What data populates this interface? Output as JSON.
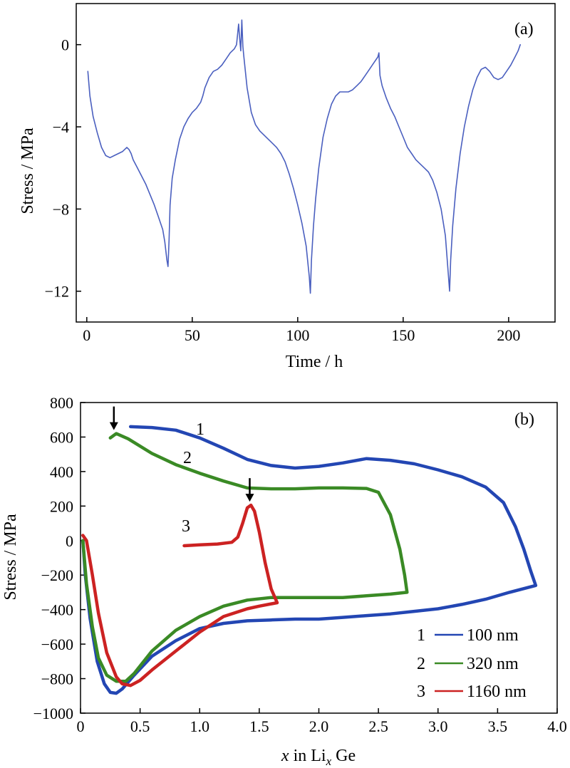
{
  "chart_data": [
    {
      "type": "line",
      "panel_label": "(a)",
      "xlabel": "Time / h",
      "ylabel": "Stress / MPa",
      "xlim": [
        -5,
        222
      ],
      "ylim": [
        -13.5,
        2
      ],
      "xticks": [
        0,
        50,
        100,
        150,
        200
      ],
      "xtick_labels": [
        "0",
        "50",
        "100",
        "150",
        "200"
      ],
      "yticks": [
        0,
        -4,
        -8,
        -12
      ],
      "ytick_labels": [
        "0",
        "−4",
        "−8",
        "−12"
      ],
      "grid": false,
      "series": [
        {
          "color": "#4a5fbf",
          "points": [
            [
              0.5,
              -1.3
            ],
            [
              1.5,
              -2.5
            ],
            [
              3,
              -3.5
            ],
            [
              5,
              -4.3
            ],
            [
              7,
              -5.0
            ],
            [
              9,
              -5.4
            ],
            [
              11,
              -5.5
            ],
            [
              13,
              -5.4
            ],
            [
              15,
              -5.3
            ],
            [
              17,
              -5.2
            ],
            [
              19,
              -5.0
            ],
            [
              20,
              -5.1
            ],
            [
              21,
              -5.3
            ],
            [
              22,
              -5.6
            ],
            [
              24,
              -6.0
            ],
            [
              26,
              -6.4
            ],
            [
              28,
              -6.8
            ],
            [
              30,
              -7.3
            ],
            [
              32,
              -7.8
            ],
            [
              34,
              -8.4
            ],
            [
              36,
              -9.0
            ],
            [
              37,
              -9.6
            ],
            [
              38,
              -10.5
            ],
            [
              38.5,
              -10.8
            ],
            [
              39,
              -9.5
            ],
            [
              39.5,
              -7.8
            ],
            [
              40.5,
              -6.5
            ],
            [
              42,
              -5.6
            ],
            [
              44,
              -4.6
            ],
            [
              46,
              -4.0
            ],
            [
              48,
              -3.6
            ],
            [
              50,
              -3.3
            ],
            [
              52,
              -3.1
            ],
            [
              54,
              -2.8
            ],
            [
              55,
              -2.5
            ],
            [
              56,
              -2.1
            ],
            [
              58,
              -1.6
            ],
            [
              60,
              -1.3
            ],
            [
              62,
              -1.2
            ],
            [
              64,
              -1.0
            ],
            [
              66,
              -0.7
            ],
            [
              68,
              -0.4
            ],
            [
              70,
              -0.2
            ],
            [
              71,
              0.0
            ],
            [
              72,
              1.0
            ],
            [
              72.5,
              0.3
            ],
            [
              73,
              -0.3
            ],
            [
              73.5,
              1.2
            ],
            [
              74,
              -0.1
            ],
            [
              74.5,
              -0.6
            ],
            [
              76,
              -2.1
            ],
            [
              78,
              -3.3
            ],
            [
              80,
              -3.9
            ],
            [
              82,
              -4.2
            ],
            [
              84,
              -4.4
            ],
            [
              86,
              -4.6
            ],
            [
              88,
              -4.8
            ],
            [
              90,
              -5.0
            ],
            [
              92,
              -5.3
            ],
            [
              94,
              -5.7
            ],
            [
              96,
              -6.3
            ],
            [
              98,
              -7.0
            ],
            [
              100,
              -7.8
            ],
            [
              102,
              -8.7
            ],
            [
              104,
              -9.8
            ],
            [
              105.5,
              -11.3
            ],
            [
              106,
              -12.1
            ],
            [
              106.5,
              -10.5
            ],
            [
              107.5,
              -8.8
            ],
            [
              108.5,
              -7.5
            ],
            [
              110,
              -6.0
            ],
            [
              112,
              -4.5
            ],
            [
              114,
              -3.6
            ],
            [
              116,
              -2.9
            ],
            [
              118,
              -2.5
            ],
            [
              120,
              -2.3
            ],
            [
              122,
              -2.3
            ],
            [
              124,
              -2.3
            ],
            [
              126,
              -2.2
            ],
            [
              128,
              -2.0
            ],
            [
              130,
              -1.8
            ],
            [
              132,
              -1.5
            ],
            [
              134,
              -1.2
            ],
            [
              136,
              -0.9
            ],
            [
              138,
              -0.6
            ],
            [
              138.5,
              -0.4
            ],
            [
              139,
              -1.5
            ],
            [
              140,
              -2.0
            ],
            [
              142,
              -2.6
            ],
            [
              144,
              -3.1
            ],
            [
              146,
              -3.5
            ],
            [
              148,
              -4.0
            ],
            [
              150,
              -4.5
            ],
            [
              152,
              -5.0
            ],
            [
              154,
              -5.3
            ],
            [
              156,
              -5.6
            ],
            [
              158,
              -5.8
            ],
            [
              160,
              -6.0
            ],
            [
              162,
              -6.2
            ],
            [
              164,
              -6.6
            ],
            [
              166,
              -7.2
            ],
            [
              168,
              -8.0
            ],
            [
              170,
              -9.3
            ],
            [
              171.5,
              -11.3
            ],
            [
              172,
              -12.0
            ],
            [
              172.5,
              -10.5
            ],
            [
              173.5,
              -8.8
            ],
            [
              175,
              -7.0
            ],
            [
              177,
              -5.3
            ],
            [
              179,
              -4.0
            ],
            [
              181,
              -3.0
            ],
            [
              183,
              -2.2
            ],
            [
              185,
              -1.6
            ],
            [
              187,
              -1.2
            ],
            [
              189,
              -1.1
            ],
            [
              191,
              -1.3
            ],
            [
              193,
              -1.6
            ],
            [
              195,
              -1.7
            ],
            [
              197,
              -1.6
            ],
            [
              199,
              -1.3
            ],
            [
              201,
              -1.0
            ],
            [
              203,
              -0.6
            ],
            [
              204.5,
              -0.3
            ],
            [
              205.5,
              0.0
            ]
          ]
        }
      ]
    },
    {
      "type": "line",
      "panel_label": "(b)",
      "xlabel_pre": "x",
      "xlabel_mid": " in Li",
      "xlabel_sub": "x",
      "xlabel_post": " Ge",
      "ylabel": "Stress / MPa",
      "xlim": [
        0,
        4.0
      ],
      "ylim": [
        -1000,
        800
      ],
      "xticks": [
        0,
        0.5,
        1.0,
        1.5,
        2.0,
        2.5,
        3.0,
        3.5,
        4.0
      ],
      "xtick_labels": [
        "0",
        "0.5",
        "1.0",
        "1.5",
        "2.0",
        "2.5",
        "3.0",
        "3.5",
        "4.0"
      ],
      "yticks": [
        800,
        600,
        400,
        200,
        0,
        -200,
        -400,
        -600,
        -800,
        -1000
      ],
      "ytick_labels": [
        "800",
        "600",
        "400",
        "200",
        "0",
        "−200",
        "−400",
        "−600",
        "−800",
        "−1000"
      ],
      "grid": false,
      "legend": {
        "position": "bottom-right",
        "entries": [
          {
            "number": "1",
            "label": "100 nm"
          },
          {
            "number": "2",
            "label": "320 nm"
          },
          {
            "number": "3",
            "label": "1160 nm"
          }
        ]
      },
      "curve_labels": [
        "1",
        "2",
        "3"
      ],
      "arrows": [
        {
          "x": 0.28,
          "y": 620
        },
        {
          "x": 1.42,
          "y": 205
        }
      ],
      "series": [
        {
          "name": "100 nm",
          "color": "#2346b3",
          "points": [
            [
              0.42,
              660
            ],
            [
              0.6,
              655
            ],
            [
              0.8,
              640
            ],
            [
              1.0,
              595
            ],
            [
              1.2,
              535
            ],
            [
              1.4,
              470
            ],
            [
              1.6,
              435
            ],
            [
              1.8,
              420
            ],
            [
              2.0,
              430
            ],
            [
              2.2,
              450
            ],
            [
              2.4,
              475
            ],
            [
              2.6,
              465
            ],
            [
              2.8,
              445
            ],
            [
              3.0,
              410
            ],
            [
              3.2,
              370
            ],
            [
              3.4,
              310
            ],
            [
              3.55,
              220
            ],
            [
              3.65,
              80
            ],
            [
              3.72,
              -50
            ],
            [
              3.78,
              -180
            ],
            [
              3.82,
              -260
            ],
            [
              3.6,
              -300
            ],
            [
              3.4,
              -340
            ],
            [
              3.2,
              -370
            ],
            [
              3.0,
              -395
            ],
            [
              2.8,
              -410
            ],
            [
              2.6,
              -425
            ],
            [
              2.4,
              -435
            ],
            [
              2.2,
              -445
            ],
            [
              2.0,
              -455
            ],
            [
              1.8,
              -455
            ],
            [
              1.6,
              -460
            ],
            [
              1.4,
              -465
            ],
            [
              1.2,
              -480
            ],
            [
              1.0,
              -510
            ],
            [
              0.8,
              -580
            ],
            [
              0.6,
              -670
            ],
            [
              0.45,
              -780
            ],
            [
              0.35,
              -860
            ],
            [
              0.3,
              -885
            ],
            [
              0.25,
              -880
            ],
            [
              0.2,
              -830
            ],
            [
              0.14,
              -700
            ],
            [
              0.08,
              -450
            ],
            [
              0.04,
              -200
            ],
            [
              0.02,
              0
            ]
          ]
        },
        {
          "name": "320 nm",
          "color": "#3a8a25",
          "points": [
            [
              0.25,
              595
            ],
            [
              0.3,
              620
            ],
            [
              0.4,
              590
            ],
            [
              0.6,
              505
            ],
            [
              0.8,
              440
            ],
            [
              1.0,
              390
            ],
            [
              1.2,
              345
            ],
            [
              1.4,
              305
            ],
            [
              1.6,
              300
            ],
            [
              1.8,
              300
            ],
            [
              2.0,
              305
            ],
            [
              2.2,
              305
            ],
            [
              2.4,
              302
            ],
            [
              2.5,
              280
            ],
            [
              2.6,
              150
            ],
            [
              2.68,
              -50
            ],
            [
              2.72,
              -200
            ],
            [
              2.74,
              -300
            ],
            [
              2.6,
              -310
            ],
            [
              2.4,
              -320
            ],
            [
              2.2,
              -330
            ],
            [
              2.0,
              -330
            ],
            [
              1.8,
              -330
            ],
            [
              1.6,
              -330
            ],
            [
              1.4,
              -345
            ],
            [
              1.2,
              -380
            ],
            [
              1.0,
              -440
            ],
            [
              0.8,
              -520
            ],
            [
              0.6,
              -640
            ],
            [
              0.45,
              -770
            ],
            [
              0.38,
              -815
            ],
            [
              0.3,
              -815
            ],
            [
              0.22,
              -780
            ],
            [
              0.15,
              -680
            ],
            [
              0.1,
              -500
            ],
            [
              0.05,
              -250
            ],
            [
              0.02,
              0
            ]
          ]
        },
        {
          "name": "1160 nm",
          "color": "#cc2222",
          "points": [
            [
              0.87,
              -30
            ],
            [
              1.0,
              -25
            ],
            [
              1.15,
              -20
            ],
            [
              1.27,
              -10
            ],
            [
              1.32,
              20
            ],
            [
              1.36,
              100
            ],
            [
              1.4,
              190
            ],
            [
              1.43,
              205
            ],
            [
              1.46,
              170
            ],
            [
              1.5,
              50
            ],
            [
              1.55,
              -130
            ],
            [
              1.6,
              -280
            ],
            [
              1.65,
              -360
            ],
            [
              1.5,
              -380
            ],
            [
              1.4,
              -395
            ],
            [
              1.2,
              -440
            ],
            [
              1.0,
              -530
            ],
            [
              0.8,
              -640
            ],
            [
              0.6,
              -750
            ],
            [
              0.5,
              -810
            ],
            [
              0.42,
              -840
            ],
            [
              0.35,
              -830
            ],
            [
              0.3,
              -790
            ],
            [
              0.22,
              -650
            ],
            [
              0.15,
              -420
            ],
            [
              0.1,
              -200
            ],
            [
              0.05,
              0
            ],
            [
              0.02,
              30
            ]
          ]
        }
      ]
    }
  ]
}
